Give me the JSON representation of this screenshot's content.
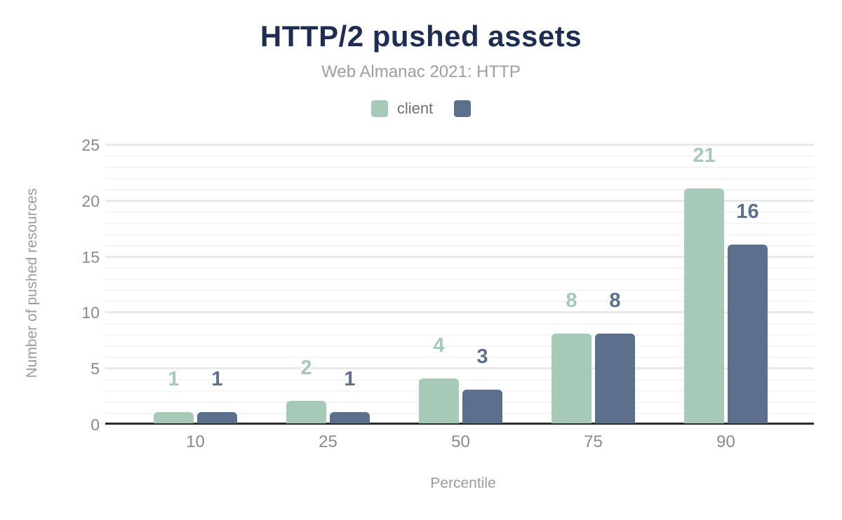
{
  "chart_data": {
    "type": "bar",
    "title": "HTTP/2 pushed assets",
    "subtitle": "Web Almanac 2021: HTTP",
    "categories": [
      "10",
      "25",
      "50",
      "75",
      "90"
    ],
    "series": [
      {
        "name": "client",
        "color": "#a7cab8",
        "values": [
          1,
          2,
          4,
          8,
          21
        ]
      },
      {
        "name": "",
        "color": "#5c6f8d",
        "values": [
          1,
          1,
          3,
          8,
          16
        ]
      }
    ],
    "xlabel": "Percentile",
    "ylabel": "Number of pushed resources",
    "ylim": [
      0,
      25
    ],
    "yticks": [
      0,
      5,
      10,
      15,
      20,
      25
    ],
    "grid": "horizontal, minor every 1 unit, major every 5 units",
    "legend_position": "top-center",
    "data_labels": true
  },
  "colors": {
    "title": "#1f2d52",
    "subtitle": "#9e9e9e",
    "legend_text": "#707070",
    "tick_text": "#8a8a8a",
    "axis_title_text": "#9b9b9b",
    "axis_line": "#2b2b2b",
    "grid_major": "#e9e9e9",
    "grid_minor": "#f4f4f4"
  }
}
